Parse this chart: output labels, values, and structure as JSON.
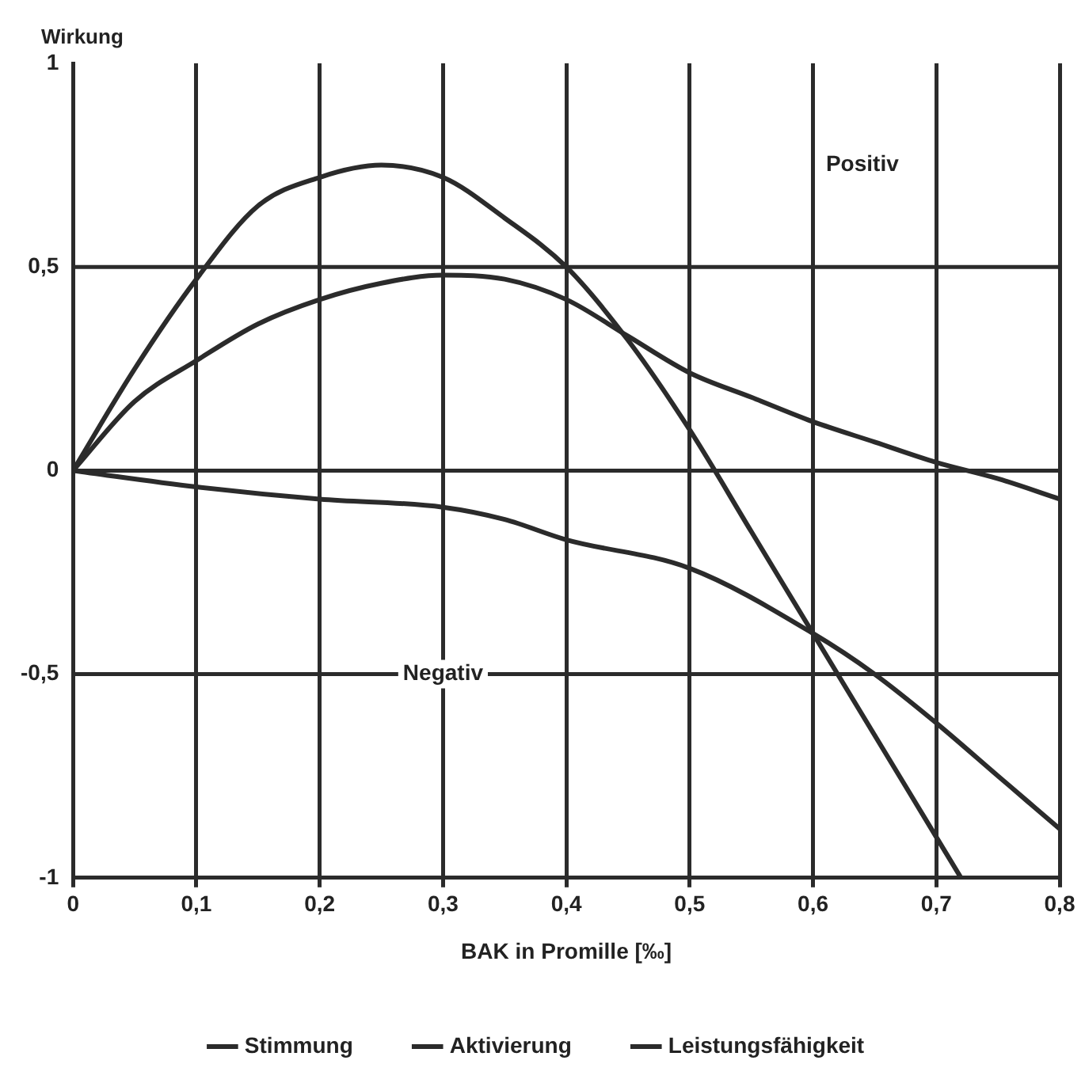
{
  "chart_data": {
    "type": "line",
    "xlabel": "BAK in Promille [‰]",
    "ylabel": "Wirkung",
    "xlim": [
      0,
      0.8
    ],
    "ylim": [
      -1,
      1
    ],
    "xticks": [
      0,
      {
        "value": 0.1,
        "label": "0,1"
      },
      {
        "value": 0.2,
        "label": "0,2"
      },
      {
        "value": 0.3,
        "label": "0,3"
      },
      {
        "value": 0.4,
        "label": "0,4"
      },
      {
        "value": 0.5,
        "label": "0,5"
      },
      {
        "value": 0.6,
        "label": "0,6"
      },
      {
        "value": 0.7,
        "label": "0,7"
      },
      {
        "value": 0.8,
        "label": "0,8"
      }
    ],
    "yticks": [
      -1,
      {
        "value": -0.5,
        "label": "-0,5"
      },
      0,
      {
        "value": 0.5,
        "label": "0,5"
      },
      1
    ],
    "grid": "x",
    "legend": "bottom",
    "marker": "none",
    "line_style": "solid",
    "ref_lines": [
      {
        "axis": "y",
        "value": 0.5
      },
      {
        "axis": "y",
        "value": 0
      },
      {
        "axis": "y",
        "value": -0.5
      }
    ],
    "annotations": [
      "Positiv",
      {
        "text": "Negativ",
        "x": 0.3,
        "y": -0.5
      }
    ],
    "series": [
      {
        "name": "Stimmung",
        "color": "#2b2b2b",
        "x": [
          0,
          0.05,
          0.1,
          0.15,
          0.2,
          0.25,
          0.3,
          0.35,
          0.4,
          0.45,
          0.5,
          0.55,
          0.6,
          0.65,
          0.7,
          0.72
        ],
        "values": [
          0,
          0.25,
          0.47,
          0.65,
          0.72,
          0.75,
          0.72,
          0.62,
          0.5,
          0.32,
          0.1,
          -0.15,
          -0.4,
          -0.65,
          -0.9,
          -1
        ]
      },
      {
        "name": "Aktivierung",
        "color": "#2b2b2b",
        "x": [
          0,
          0.05,
          0.1,
          0.15,
          0.2,
          0.25,
          0.3,
          0.35,
          0.4,
          0.45,
          0.5,
          0.55,
          0.6,
          0.65,
          0.7,
          0.75,
          0.8
        ],
        "values": [
          0,
          0.17,
          0.27,
          0.36,
          0.42,
          0.46,
          0.48,
          0.47,
          0.42,
          0.33,
          0.24,
          0.18,
          0.12,
          0.07,
          0.02,
          -0.02,
          -0.07
        ]
      },
      {
        "name": "Leistungsfähigkeit",
        "color": "#2b2b2b",
        "x": [
          0,
          0.1,
          0.2,
          0.3,
          0.35,
          0.4,
          0.5,
          0.6,
          0.65,
          0.7,
          0.75,
          0.8
        ],
        "values": [
          0,
          -0.04,
          -0.07,
          -0.09,
          -0.12,
          -0.17,
          -0.24,
          -0.4,
          -0.5,
          -0.62,
          -0.75,
          -0.88
        ]
      }
    ]
  }
}
